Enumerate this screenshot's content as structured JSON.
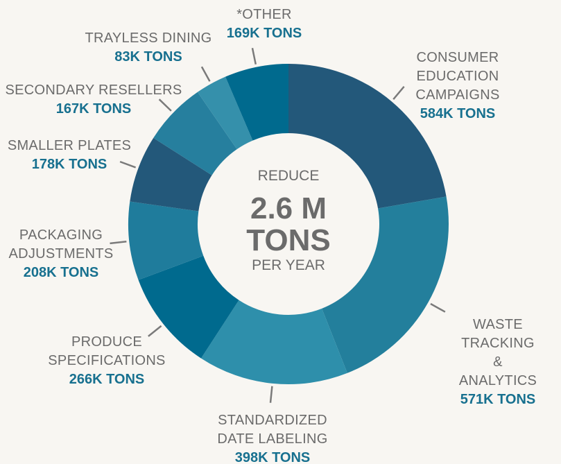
{
  "chart_data": {
    "type": "donut",
    "categories": [
      "CONSUMER EDUCATION\nCAMPAIGNS",
      "WASTE TRACKING\n& ANALYTICS",
      "STANDARDIZED\nDATE LABELING",
      "PRODUCE\nSPECIFICATIONS",
      "PACKAGING\nADJUSTMENTS",
      "SMALLER PLATES",
      "SECONDARY RESELLERS",
      "TRAYLESS DINING",
      "*OTHER"
    ],
    "values": [
      584,
      571,
      398,
      266,
      208,
      178,
      167,
      83,
      169
    ],
    "value_labels": [
      "584K TONS",
      "571K TONS",
      "398K TONS",
      "266K TONS",
      "208K TONS",
      "178K TONS",
      "167K TONS",
      "83K TONS",
      "169K TONS"
    ],
    "colors": [
      "#23587a",
      "#237f9c",
      "#2e8fab",
      "#006a8e",
      "#1f7c9c",
      "#23587a",
      "#267f9e",
      "#3590ab",
      "#006a8e"
    ],
    "center_label": {
      "top": "REDUCE",
      "main": "2.6 M\nTONS",
      "bottom": "PER YEAR"
    }
  }
}
